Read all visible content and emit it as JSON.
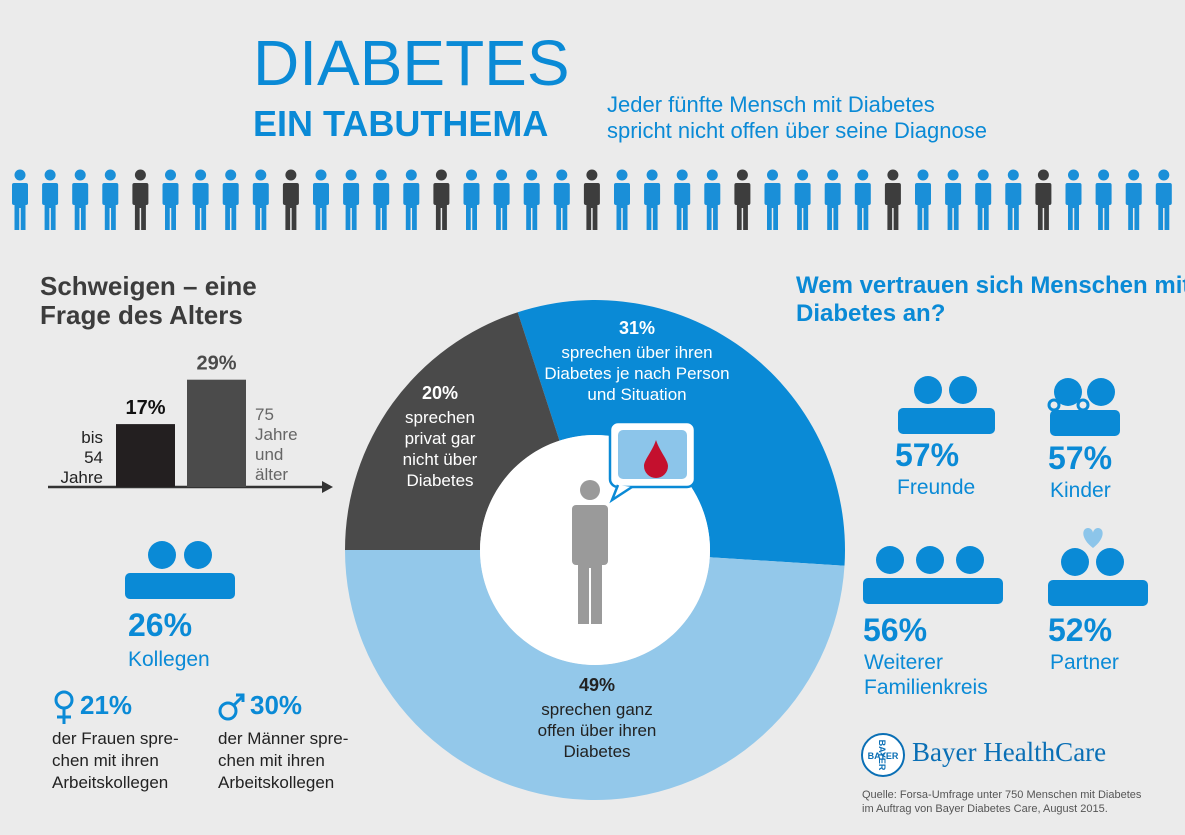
{
  "header": {
    "title": "DIABETES",
    "subtitle": "EIN TABUTHEMA",
    "tagline": [
      "Jeder fünfte Mensch mit Diabetes",
      "spricht nicht offen über seine Diagnose"
    ]
  },
  "chart_data": [
    {
      "type": "bar",
      "title": "Schweigen – eine Frage des Alters",
      "categories": [
        "bis 54 Jahre",
        "75 Jahre und älter"
      ],
      "values": [
        17,
        29
      ],
      "value_labels": [
        "17%",
        "29%"
      ],
      "colors": [
        "#231f20",
        "#4b4b4b"
      ]
    },
    {
      "type": "pie",
      "values": [
        31,
        49,
        20
      ],
      "value_labels": [
        "31%",
        "49%",
        "20%"
      ],
      "labels": [
        "sprechen über ihren Diabetes je nach Person und Situation",
        "sprechen ganz offen über ihren Diabetes",
        "sprechen privat gar nicht über Diabetes"
      ],
      "colors": [
        "#0a8ad6",
        "#93c8ea",
        "#4a4a4a"
      ]
    }
  ],
  "colleagues": {
    "value": "26%",
    "label": "Kollegen",
    "women": {
      "value": "21%",
      "lines": [
        "der Frauen spre-",
        "chen mit ihren",
        "Arbeitskollegen"
      ]
    },
    "men": {
      "value": "30%",
      "lines": [
        "der Männer spre-",
        "chen mit ihren",
        "Arbeitskollegen"
      ]
    }
  },
  "confidants": {
    "title": "Wem vertrauen sich Menschen mit Diabetes an?",
    "items": [
      {
        "value": "57%",
        "label": "Freunde"
      },
      {
        "value": "57%",
        "label": "Kinder"
      },
      {
        "value": "56%",
        "label": "Weiterer Familienkreis"
      },
      {
        "value": "52%",
        "label": "Partner"
      }
    ]
  },
  "logo": {
    "mark": "BAYER",
    "name": "Bayer HealthCare"
  },
  "source": [
    "Quelle: Forsa-Umfrage unter 750 Menschen mit Diabetes",
    "im Auftrag von Bayer Diabetes Care, August 2015."
  ]
}
